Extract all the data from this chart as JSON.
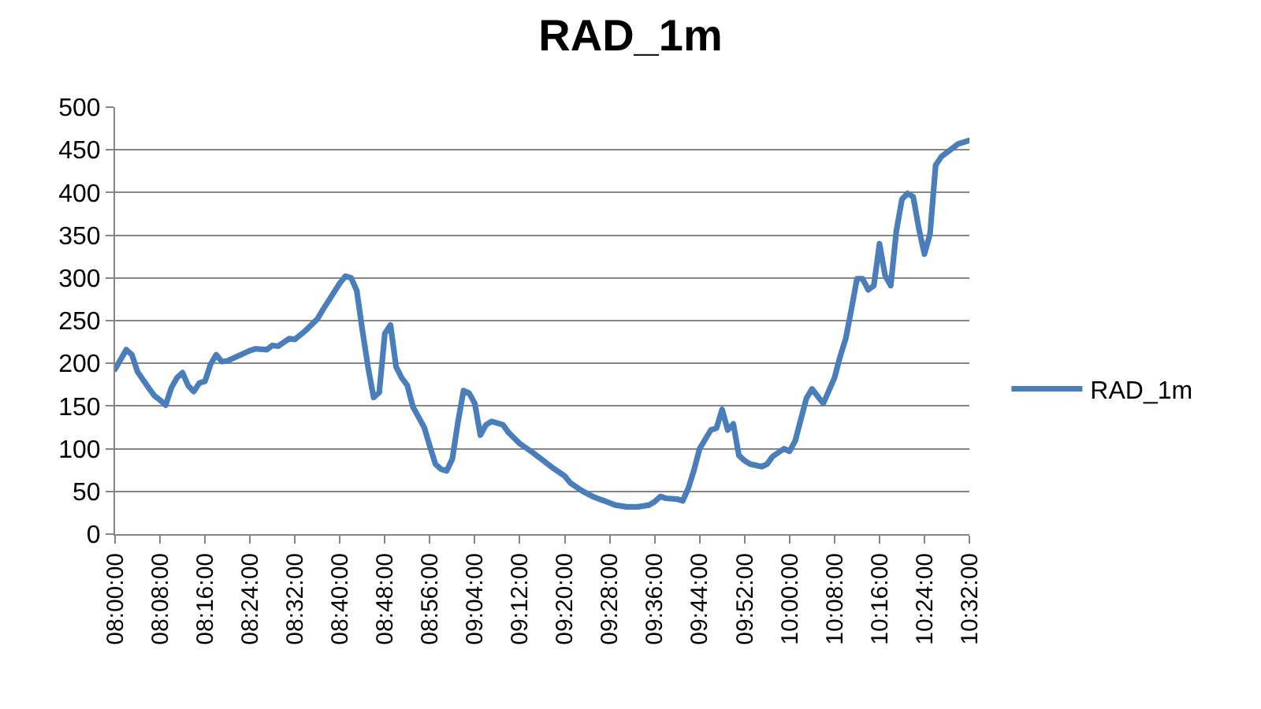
{
  "chart_data": {
    "type": "line",
    "title": "RAD_1m",
    "x": [
      8,
      8.0333,
      8.05,
      8.0667,
      8.1,
      8.1167,
      8.1333,
      8.15,
      8.1667,
      8.1833,
      8.2,
      8.2167,
      8.2333,
      8.25,
      8.2667,
      8.2833,
      8.3,
      8.3167,
      8.3333,
      8.3667,
      8.4,
      8.4167,
      8.45,
      8.4667,
      8.4833,
      8.5167,
      8.5333,
      8.5667,
      8.6,
      8.6167,
      8.6667,
      8.6833,
      8.7,
      8.7167,
      8.7333,
      8.75,
      8.7667,
      8.7833,
      8.8,
      8.8167,
      8.8333,
      8.85,
      8.8667,
      8.8833,
      8.9,
      8.9167,
      8.9333,
      8.95,
      8.9667,
      8.9833,
      9,
      9.0167,
      9.0333,
      9.05,
      9.0667,
      9.0833,
      9.1,
      9.1167,
      9.15,
      9.1667,
      9.2,
      9.2333,
      9.2667,
      9.3,
      9.3333,
      9.35,
      9.3833,
      9.4167,
      9.45,
      9.4833,
      9.5167,
      9.55,
      9.5833,
      9.6,
      9.6167,
      9.6333,
      9.6667,
      9.6833,
      9.7,
      9.7167,
      9.7333,
      9.7667,
      9.7833,
      9.8,
      9.8167,
      9.8333,
      9.85,
      9.8667,
      9.8833,
      9.9167,
      9.9333,
      9.95,
      9.9833,
      10,
      10.0167,
      10.0333,
      10.05,
      10.0667,
      10.1,
      10.1167,
      10.1333,
      10.15,
      10.1667,
      10.1833,
      10.2,
      10.2167,
      10.2333,
      10.25,
      10.2667,
      10.2833,
      10.3,
      10.3167,
      10.3333,
      10.35,
      10.3667,
      10.3833,
      10.4,
      10.4167,
      10.4333,
      10.45,
      10.4833,
      10.5,
      10.5167,
      10.5333
    ],
    "series": [
      {
        "name": "RAD_1m",
        "color": "#4a7ebb",
        "values": [
          193,
          216,
          210,
          190,
          171,
          162,
          157,
          151,
          171,
          183,
          189,
          174,
          167,
          177,
          179,
          199,
          210,
          202,
          203,
          209,
          215,
          217,
          216,
          221,
          220,
          229,
          228,
          239,
          252,
          263,
          294,
          302,
          300,
          285,
          239,
          196,
          160,
          166,
          235,
          245,
          196,
          183,
          174,
          149,
          137,
          125,
          103,
          82,
          76,
          74,
          88,
          131,
          168,
          165,
          153,
          116,
          128,
          132,
          128,
          119,
          106,
          97,
          87,
          77,
          68,
          60,
          51,
          44,
          39,
          34,
          32,
          32,
          34,
          38,
          44,
          42,
          41,
          39,
          54,
          75,
          100,
          122,
          124,
          146,
          122,
          129,
          92,
          86,
          82,
          79,
          82,
          91,
          100,
          97,
          109,
          134,
          159,
          170,
          153,
          168,
          183,
          208,
          229,
          263,
          299,
          299,
          286,
          291,
          340,
          303,
          291,
          355,
          392,
          399,
          395,
          358,
          328,
          352,
          432,
          442,
          452,
          457,
          459,
          461
        ]
      }
    ],
    "xlim": [
      8,
      10.5333
    ],
    "xticks": [
      {
        "value": 8,
        "label": "08:00:00"
      },
      {
        "value": 8.1333,
        "label": "08:08:00"
      },
      {
        "value": 8.2667,
        "label": "08:16:00"
      },
      {
        "value": 8.4,
        "label": "08:24:00"
      },
      {
        "value": 8.5333,
        "label": "08:32:00"
      },
      {
        "value": 8.6667,
        "label": "08:40:00"
      },
      {
        "value": 8.8,
        "label": "08:48:00"
      },
      {
        "value": 8.9333,
        "label": "08:56:00"
      },
      {
        "value": 9.0667,
        "label": "09:04:00"
      },
      {
        "value": 9.2,
        "label": "09:12:00"
      },
      {
        "value": 9.3333,
        "label": "09:20:00"
      },
      {
        "value": 9.4667,
        "label": "09:28:00"
      },
      {
        "value": 9.6,
        "label": "09:36:00"
      },
      {
        "value": 9.7333,
        "label": "09:44:00"
      },
      {
        "value": 9.8667,
        "label": "09:52:00"
      },
      {
        "value": 10,
        "label": "10:00:00"
      },
      {
        "value": 10.1333,
        "label": "10:08:00"
      },
      {
        "value": 10.2667,
        "label": "10:16:00"
      },
      {
        "value": 10.4,
        "label": "10:24:00"
      },
      {
        "value": 10.5333,
        "label": "10:32:00"
      }
    ],
    "ylim": [
      0,
      500
    ],
    "yticks": [
      0,
      50,
      100,
      150,
      200,
      250,
      300,
      350,
      400,
      450,
      500
    ],
    "grid": "y",
    "legend": "right",
    "marker": "none",
    "line_style": "solid"
  }
}
